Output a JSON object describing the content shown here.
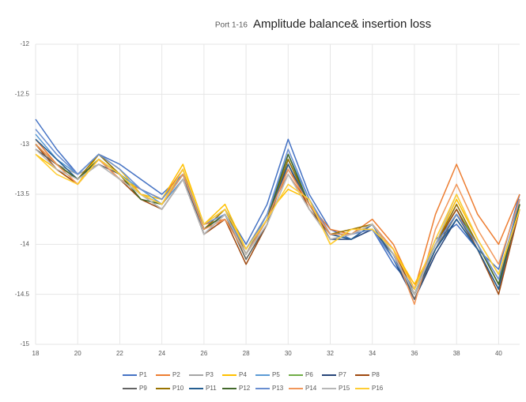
{
  "chart_data": {
    "type": "line",
    "subtitle": "Port 1-16",
    "title": "Amplitude balance& insertion loss",
    "x": [
      18,
      19,
      20,
      21,
      22,
      23,
      24,
      25,
      26,
      27,
      28,
      29,
      30,
      31,
      32,
      33,
      34,
      35,
      36,
      37,
      38,
      39,
      40,
      41
    ],
    "xlim": [
      18,
      41
    ],
    "xticks": [
      18,
      20,
      22,
      24,
      26,
      28,
      30,
      32,
      34,
      36,
      38,
      40
    ],
    "ylim": [
      -15,
      -12
    ],
    "yticks": [
      -12,
      -12.5,
      -13,
      -13.5,
      -14,
      -14.5,
      -15
    ],
    "grid": true,
    "legend": "bottom",
    "series": [
      {
        "name": "P1",
        "color": "#4472c4",
        "values": [
          -12.75,
          -13.05,
          -13.3,
          -13.1,
          -13.2,
          -13.35,
          -13.5,
          -13.3,
          -13.8,
          -13.65,
          -14.0,
          -13.6,
          -12.95,
          -13.5,
          -13.85,
          -13.95,
          -13.85,
          -14.2,
          -14.45,
          -13.95,
          -13.8,
          -14.05,
          -14.25,
          -13.5
        ]
      },
      {
        "name": "P2",
        "color": "#ed7d31",
        "values": [
          -12.95,
          -13.2,
          -13.4,
          -13.15,
          -13.35,
          -13.45,
          -13.55,
          -13.25,
          -13.8,
          -13.75,
          -14.05,
          -13.7,
          -13.3,
          -13.6,
          -13.85,
          -13.9,
          -13.75,
          -14.0,
          -14.45,
          -13.7,
          -13.2,
          -13.7,
          -14.0,
          -13.5
        ]
      },
      {
        "name": "P3",
        "color": "#a5a5a5",
        "values": [
          -13.05,
          -13.2,
          -13.3,
          -13.2,
          -13.35,
          -13.5,
          -13.65,
          -13.35,
          -13.9,
          -13.7,
          -14.1,
          -13.8,
          -13.3,
          -13.65,
          -13.95,
          -13.9,
          -13.8,
          -14.1,
          -14.55,
          -14.05,
          -13.6,
          -14.0,
          -14.35,
          -13.65
        ]
      },
      {
        "name": "P4",
        "color": "#ffc000",
        "values": [
          -13.1,
          -13.25,
          -13.4,
          -13.1,
          -13.25,
          -13.5,
          -13.55,
          -13.2,
          -13.8,
          -13.6,
          -14.05,
          -13.7,
          -13.45,
          -13.55,
          -14.0,
          -13.85,
          -13.85,
          -14.05,
          -14.4,
          -14.0,
          -13.55,
          -13.95,
          -14.3,
          -13.6
        ]
      },
      {
        "name": "P5",
        "color": "#5b9bd5",
        "values": [
          -12.9,
          -13.15,
          -13.3,
          -13.1,
          -13.3,
          -13.45,
          -13.6,
          -13.35,
          -13.85,
          -13.7,
          -14.1,
          -13.7,
          -13.1,
          -13.55,
          -13.9,
          -13.95,
          -13.8,
          -14.15,
          -14.5,
          -14.05,
          -13.75,
          -14.05,
          -14.45,
          -13.55
        ]
      },
      {
        "name": "P6",
        "color": "#70ad47",
        "values": [
          -13.0,
          -13.2,
          -13.35,
          -13.15,
          -13.3,
          -13.55,
          -13.6,
          -13.3,
          -13.85,
          -13.7,
          -14.15,
          -13.8,
          -13.15,
          -13.6,
          -13.9,
          -13.9,
          -13.8,
          -14.1,
          -14.5,
          -14.0,
          -13.65,
          -14.0,
          -14.4,
          -13.6
        ]
      },
      {
        "name": "P7",
        "color": "#264478",
        "values": [
          -13.05,
          -13.2,
          -13.35,
          -13.15,
          -13.3,
          -13.5,
          -13.6,
          -13.3,
          -13.9,
          -13.7,
          -14.1,
          -13.75,
          -13.25,
          -13.6,
          -13.95,
          -13.95,
          -13.85,
          -14.15,
          -14.55,
          -14.1,
          -13.75,
          -14.05,
          -14.45,
          -13.6
        ]
      },
      {
        "name": "P8",
        "color": "#9e480e",
        "values": [
          -13.0,
          -13.25,
          -13.4,
          -13.15,
          -13.35,
          -13.55,
          -13.65,
          -13.35,
          -13.9,
          -13.75,
          -14.2,
          -13.8,
          -13.2,
          -13.65,
          -13.9,
          -13.9,
          -13.8,
          -14.05,
          -14.5,
          -14.0,
          -13.65,
          -14.05,
          -14.5,
          -13.65
        ]
      },
      {
        "name": "P9",
        "color": "#636363",
        "values": [
          -13.05,
          -13.2,
          -13.35,
          -13.2,
          -13.3,
          -13.5,
          -13.65,
          -13.35,
          -13.9,
          -13.7,
          -14.15,
          -13.8,
          -13.15,
          -13.6,
          -13.95,
          -13.9,
          -13.85,
          -14.1,
          -14.55,
          -14.05,
          -13.7,
          -14.05,
          -14.45,
          -13.6
        ]
      },
      {
        "name": "P10",
        "color": "#997300",
        "values": [
          -13.0,
          -13.2,
          -13.35,
          -13.1,
          -13.3,
          -13.5,
          -13.6,
          -13.25,
          -13.85,
          -13.65,
          -14.1,
          -13.75,
          -13.15,
          -13.6,
          -13.9,
          -13.85,
          -13.8,
          -14.1,
          -14.5,
          -14.0,
          -13.6,
          -14.0,
          -14.4,
          -13.6
        ]
      },
      {
        "name": "P11",
        "color": "#255e91",
        "values": [
          -12.95,
          -13.15,
          -13.35,
          -13.15,
          -13.3,
          -13.5,
          -13.6,
          -13.3,
          -13.85,
          -13.7,
          -14.1,
          -13.75,
          -13.2,
          -13.6,
          -13.9,
          -13.95,
          -13.8,
          -14.15,
          -14.5,
          -14.05,
          -13.75,
          -14.05,
          -14.45,
          -13.55
        ]
      },
      {
        "name": "P12",
        "color": "#43682b",
        "values": [
          -13.0,
          -13.2,
          -13.35,
          -13.15,
          -13.3,
          -13.55,
          -13.6,
          -13.3,
          -13.85,
          -13.7,
          -14.1,
          -13.75,
          -13.1,
          -13.6,
          -13.9,
          -13.9,
          -13.8,
          -14.1,
          -14.5,
          -14.0,
          -13.7,
          -14.0,
          -14.4,
          -13.6
        ]
      },
      {
        "name": "P13",
        "color": "#698ed0",
        "values": [
          -12.85,
          -13.1,
          -13.3,
          -13.1,
          -13.25,
          -13.45,
          -13.55,
          -13.3,
          -13.8,
          -13.7,
          -14.05,
          -13.7,
          -13.05,
          -13.55,
          -13.9,
          -13.9,
          -13.85,
          -14.15,
          -14.45,
          -14.0,
          -13.7,
          -14.0,
          -14.35,
          -13.55
        ]
      },
      {
        "name": "P14",
        "color": "#f1975a",
        "values": [
          -13.0,
          -13.2,
          -13.4,
          -13.15,
          -13.35,
          -13.5,
          -13.6,
          -13.3,
          -13.85,
          -13.75,
          -14.1,
          -13.75,
          -13.25,
          -13.6,
          -13.9,
          -13.9,
          -13.8,
          -14.05,
          -14.6,
          -13.85,
          -13.4,
          -13.85,
          -14.2,
          -13.55
        ]
      },
      {
        "name": "P15",
        "color": "#b7b7b7",
        "values": [
          -13.05,
          -13.25,
          -13.35,
          -13.2,
          -13.35,
          -13.5,
          -13.65,
          -13.35,
          -13.9,
          -13.7,
          -14.1,
          -13.8,
          -13.3,
          -13.65,
          -13.95,
          -13.9,
          -13.8,
          -14.1,
          -14.5,
          -14.0,
          -13.5,
          -13.95,
          -14.3,
          -13.65
        ]
      },
      {
        "name": "P16",
        "color": "#ffcd33",
        "values": [
          -13.1,
          -13.3,
          -13.4,
          -13.15,
          -13.3,
          -13.5,
          -13.6,
          -13.25,
          -13.8,
          -13.65,
          -14.05,
          -13.75,
          -13.4,
          -13.55,
          -14.0,
          -13.85,
          -13.85,
          -14.05,
          -14.45,
          -13.95,
          -13.5,
          -13.95,
          -14.3,
          -13.65
        ]
      }
    ]
  }
}
